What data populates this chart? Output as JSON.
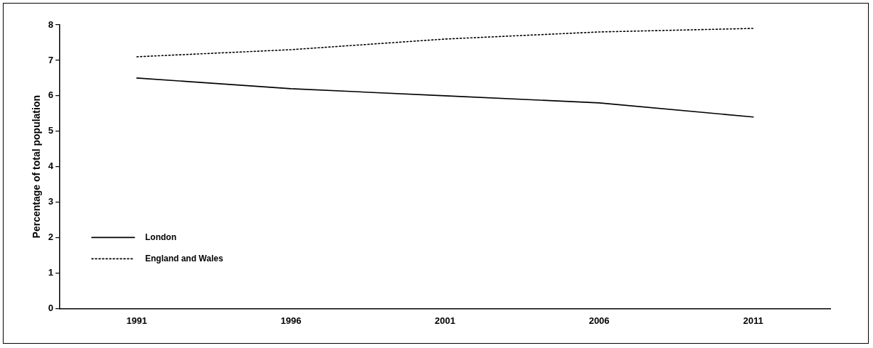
{
  "chart_data": {
    "type": "line",
    "ylabel": "Percentage of total population",
    "categories": [
      "1991",
      "1996",
      "2001",
      "2006",
      "2011"
    ],
    "series": [
      {
        "name": "London",
        "color": "#000000",
        "line_style": "solid",
        "values": [
          6.5,
          6.2,
          6.0,
          5.8,
          5.4
        ]
      },
      {
        "name": "England and Wales",
        "color": "#000000",
        "line_style": "dotted",
        "values": [
          7.1,
          7.3,
          7.6,
          7.8,
          7.9
        ]
      }
    ],
    "ylim": [
      0,
      8
    ],
    "yticks": [
      0,
      1,
      2,
      3,
      4,
      5,
      6,
      7,
      8
    ],
    "grid": false,
    "legend": "bottom left",
    "marker": "none"
  }
}
